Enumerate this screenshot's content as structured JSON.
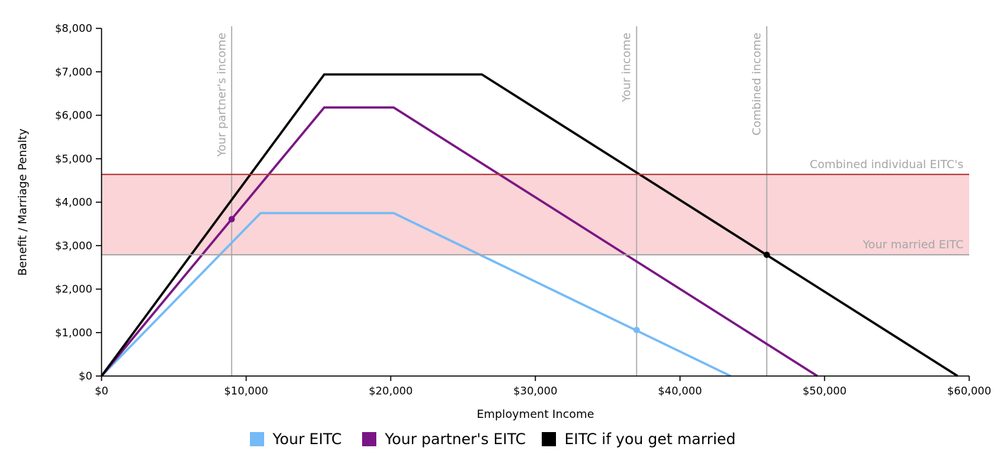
{
  "chart_data": {
    "type": "line",
    "title": "",
    "xlabel": "Employment Income",
    "ylabel": "Benefit / Marriage Penalty",
    "xlim": [
      0,
      60000
    ],
    "ylim": [
      0,
      8000
    ],
    "x_ticks": [
      {
        "value": 0,
        "label": "$0"
      },
      {
        "value": 10000,
        "label": "$10,000"
      },
      {
        "value": 20000,
        "label": "$20,000"
      },
      {
        "value": 30000,
        "label": "$30,000"
      },
      {
        "value": 40000,
        "label": "$40,000"
      },
      {
        "value": 50000,
        "label": "$50,000"
      },
      {
        "value": 60000,
        "label": "$60,000"
      }
    ],
    "y_ticks": [
      {
        "value": 0,
        "label": "$0"
      },
      {
        "value": 1000,
        "label": "$1,000"
      },
      {
        "value": 2000,
        "label": "$2,000"
      },
      {
        "value": 3000,
        "label": "$3,000"
      },
      {
        "value": 4000,
        "label": "$4,000"
      },
      {
        "value": 5000,
        "label": "$5,000"
      },
      {
        "value": 6000,
        "label": "$6,000"
      },
      {
        "value": 7000,
        "label": "$7,000"
      },
      {
        "value": 8000,
        "label": "$8,000"
      }
    ],
    "grid": false,
    "legend_position": "bottom-center",
    "penalty_band": {
      "y_low": 2790,
      "y_high": 4640,
      "fill": "#fad4d6",
      "top_line_color": "#b03a3a"
    },
    "reference_lines_horizontal": [
      {
        "y": 4640,
        "label": "Combined individual EITC's",
        "color": "#b03a3a"
      },
      {
        "y": 2790,
        "label": "Your married EITC",
        "color": "#a6a6a6"
      }
    ],
    "reference_lines_vertical": [
      {
        "x": 9000,
        "label": "Your partner's income"
      },
      {
        "x": 37000,
        "label": "Your income"
      },
      {
        "x": 46000,
        "label": "Combined income"
      }
    ],
    "series": [
      {
        "name": "Your EITC",
        "color": "#74baf7",
        "points": [
          [
            0,
            0
          ],
          [
            11000,
            3750
          ],
          [
            20200,
            3750
          ],
          [
            43500,
            0
          ]
        ],
        "marker": [
          37000,
          1060
        ]
      },
      {
        "name": "Your partner's EITC",
        "color": "#7a1585",
        "points": [
          [
            0,
            0
          ],
          [
            15400,
            6180
          ],
          [
            20200,
            6180
          ],
          [
            49500,
            0
          ]
        ],
        "marker": [
          9000,
          3610
        ]
      },
      {
        "name": "EITC if you get married",
        "color": "#000000",
        "points": [
          [
            0,
            0
          ],
          [
            15400,
            6940
          ],
          [
            26300,
            6940
          ],
          [
            59200,
            0
          ]
        ],
        "marker": [
          46000,
          2790
        ]
      }
    ]
  }
}
